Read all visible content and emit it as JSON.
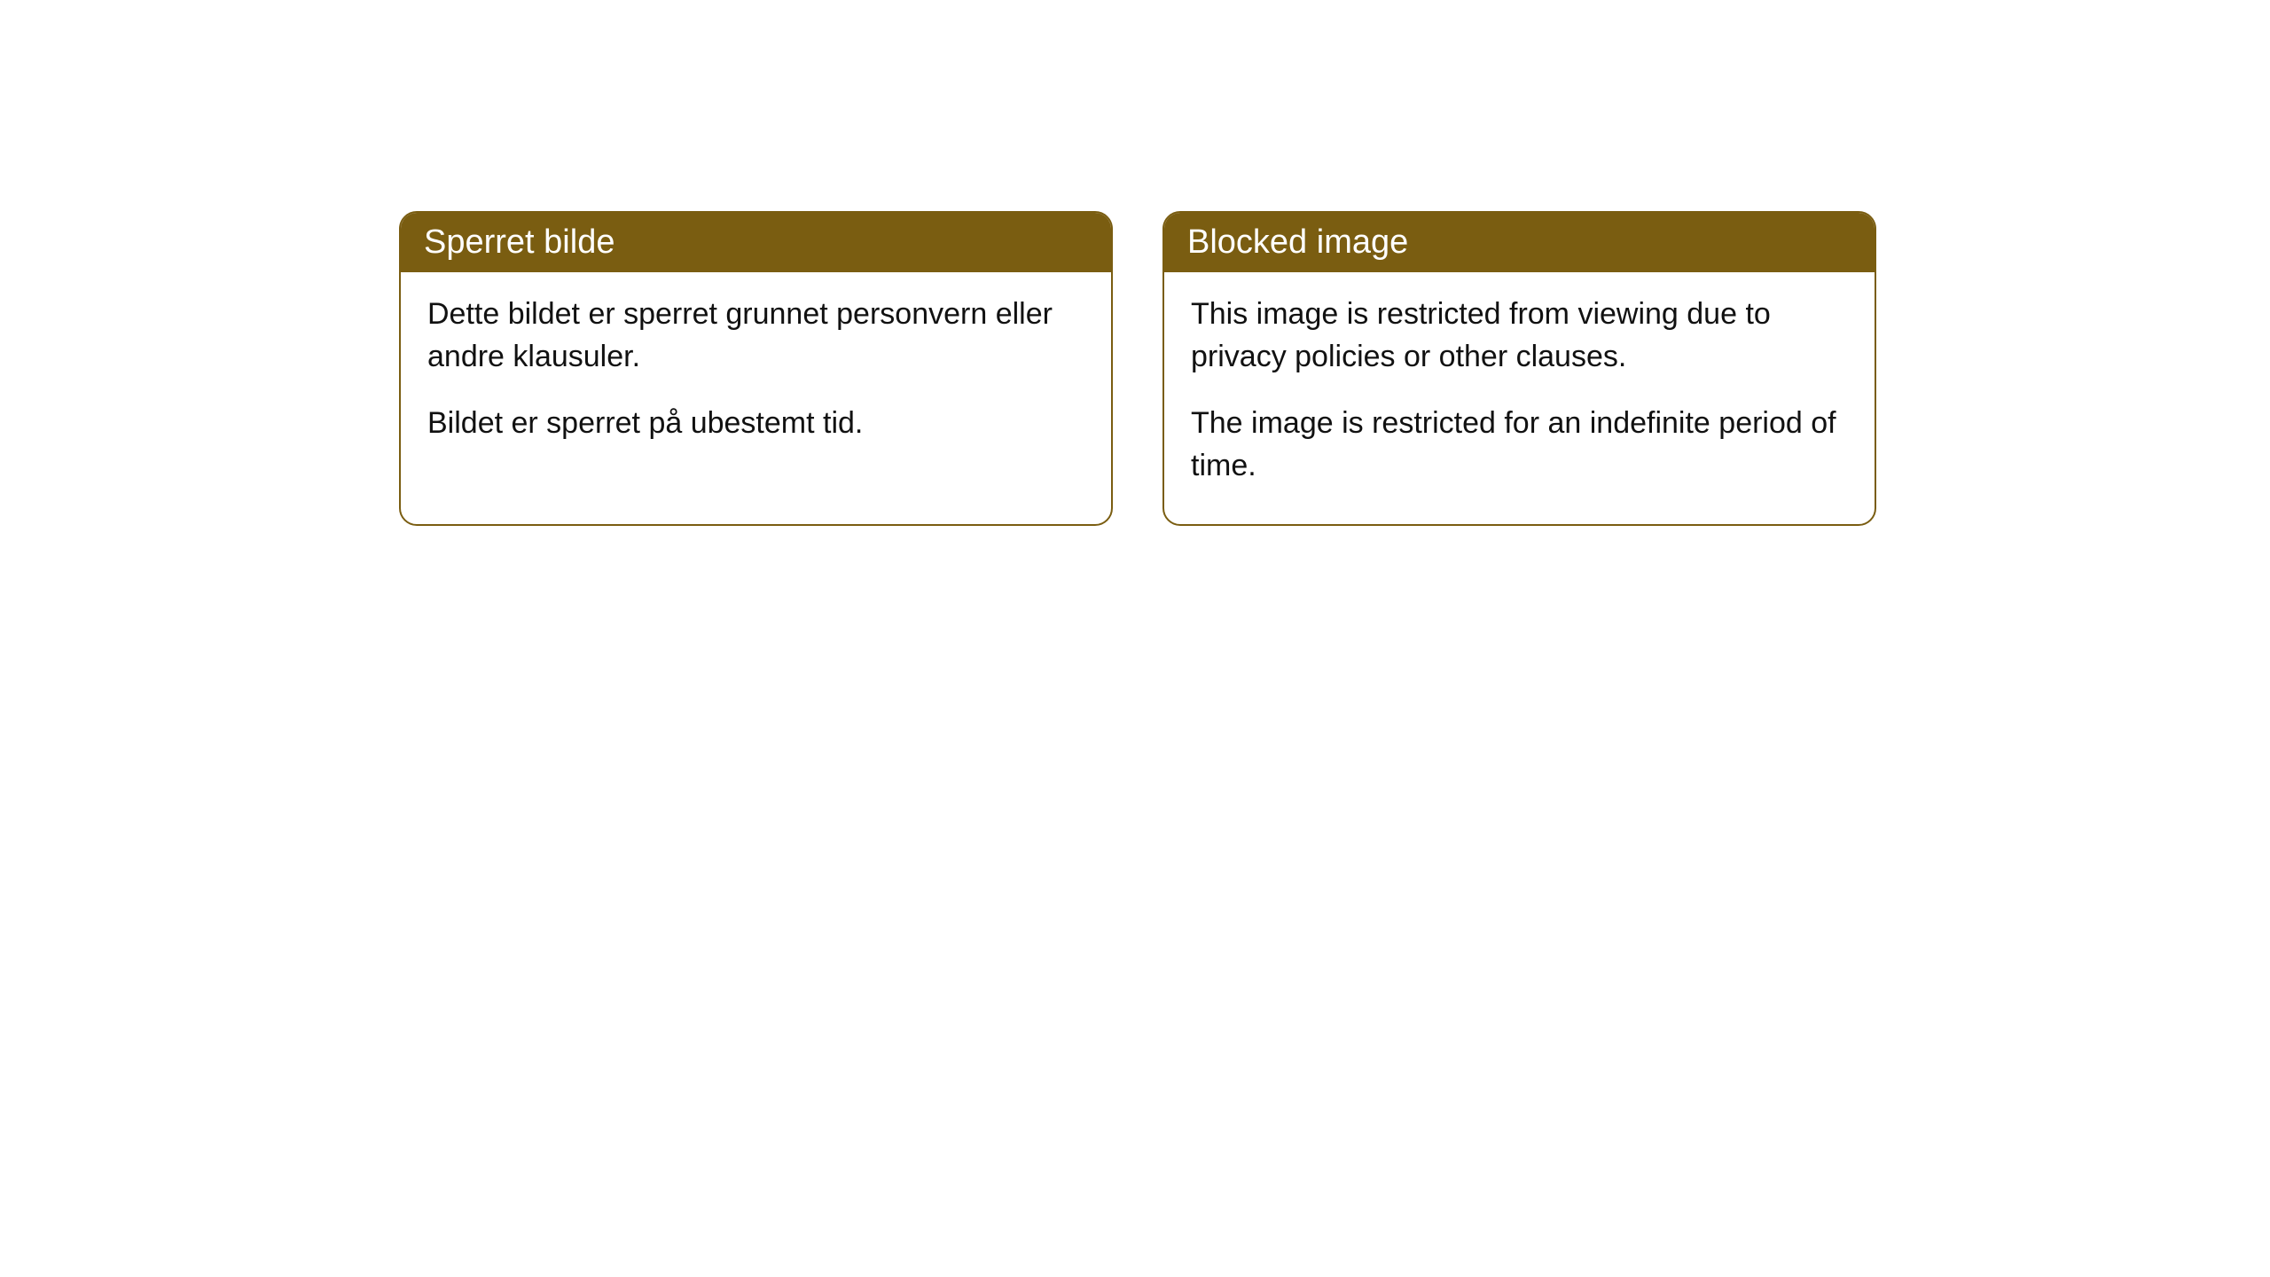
{
  "cards": {
    "norwegian": {
      "title": "Sperret bilde",
      "paragraph1": "Dette bildet er sperret grunnet personvern eller andre klausuler.",
      "paragraph2": "Bildet er sperret på ubestemt tid."
    },
    "english": {
      "title": "Blocked image",
      "paragraph1": "This image is restricted from viewing due to privacy policies or other clauses.",
      "paragraph2": "The image is restricted for an indefinite period of time."
    }
  },
  "styling": {
    "header_background_color": "#7a5d11",
    "header_text_color": "#ffffff",
    "border_color": "#7a5d11",
    "body_text_color": "#111111",
    "background_color": "#ffffff",
    "border_radius": 20,
    "header_fontsize": 38,
    "body_fontsize": 34
  }
}
